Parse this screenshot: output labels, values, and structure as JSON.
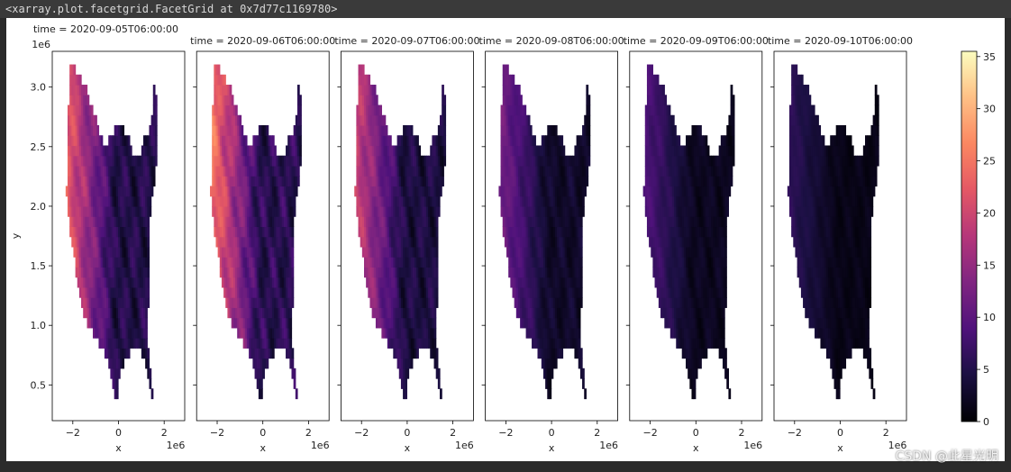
{
  "output_repr": "<xarray.plot.facetgrid.FacetGrid at 0x7d77c1169780>",
  "watermark": "CSDN @此星光明",
  "chart_data": {
    "type": "heatmap",
    "colormap": "magma",
    "colorbar": {
      "ticks": [
        0,
        5,
        10,
        15,
        20,
        25,
        30,
        35
      ],
      "range": [
        0,
        35.5
      ]
    },
    "x": {
      "label": "x",
      "ticks": [
        -2,
        0,
        2
      ],
      "tick_labels": [
        "−2",
        "0",
        "2"
      ],
      "offset": "1e6",
      "range": [
        -2.9,
        2.9
      ]
    },
    "y": {
      "label": "y",
      "ticks": [
        0.5,
        1.0,
        1.5,
        2.0,
        2.5,
        3.0
      ],
      "tick_labels": [
        "0.5",
        "1.0",
        "1.5",
        "2.0",
        "2.5",
        "3.0"
      ],
      "offset": "1e6",
      "range": [
        0.2,
        3.3
      ]
    },
    "panels": [
      {
        "title": "time = 2020-09-05T06:00:00",
        "intensity": 0.55
      },
      {
        "title": "time = 2020-09-06T06:00:00",
        "intensity": 0.62
      },
      {
        "title": "time = 2020-09-07T06:00:00",
        "intensity": 0.48
      },
      {
        "title": "time = 2020-09-08T06:00:00",
        "intensity": 0.3
      },
      {
        "title": "time = 2020-09-09T06:00:00",
        "intensity": 0.22
      },
      {
        "title": "time = 2020-09-10T06:00:00",
        "intensity": 0.15
      }
    ]
  }
}
